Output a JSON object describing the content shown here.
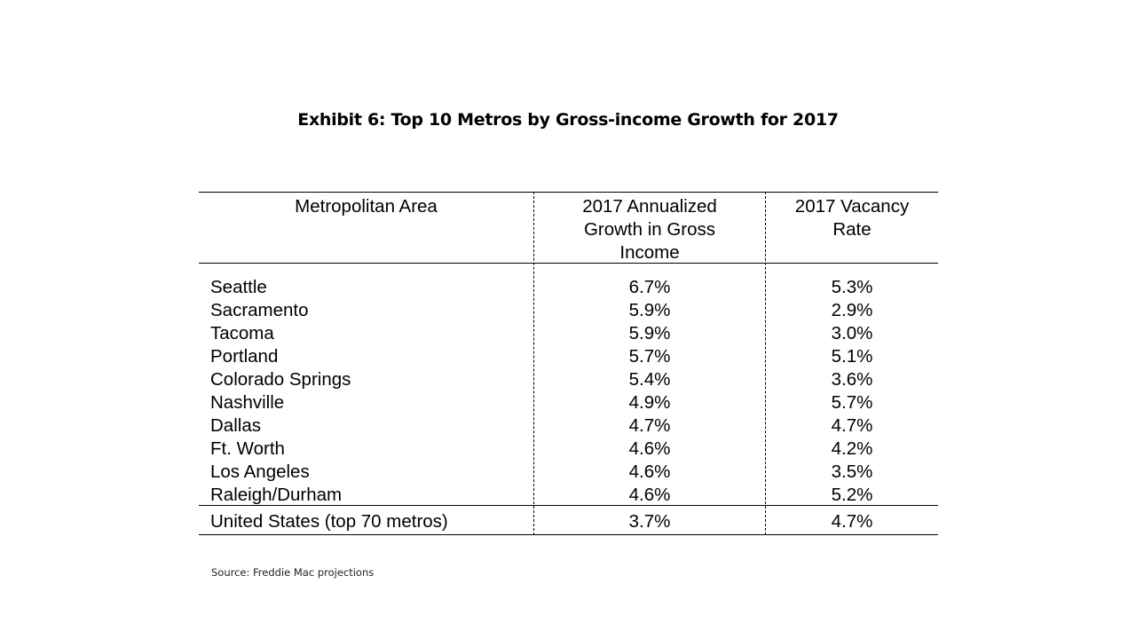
{
  "chart_data": {
    "type": "table",
    "title": "Exhibit 6: Top 10 Metros by Gross-income Growth for 2017",
    "columns": [
      "Metropolitan Area",
      "2017 Annualized\nGrowth in Gross\nIncome",
      "2017 Vacancy\nRate"
    ],
    "rows": [
      [
        "Seattle",
        "6.7%",
        "5.3%"
      ],
      [
        "Sacramento",
        "5.9%",
        "2.9%"
      ],
      [
        "Tacoma",
        "5.9%",
        "3.0%"
      ],
      [
        "Portland",
        "5.7%",
        "5.1%"
      ],
      [
        "Colorado Springs",
        "5.4%",
        "3.6%"
      ],
      [
        "Nashville",
        "4.9%",
        "5.7%"
      ],
      [
        "Dallas",
        "4.7%",
        "4.7%"
      ],
      [
        "Ft. Worth",
        "4.6%",
        "4.2%"
      ],
      [
        "Los Angeles",
        "4.6%",
        "3.5%"
      ],
      [
        "Raleigh/Durham",
        "4.6%",
        "5.2%"
      ]
    ],
    "summary_row": [
      "United States (top 70 metros)",
      "3.7%",
      "4.7%"
    ],
    "source": "Source: Freddie Mac projections"
  }
}
